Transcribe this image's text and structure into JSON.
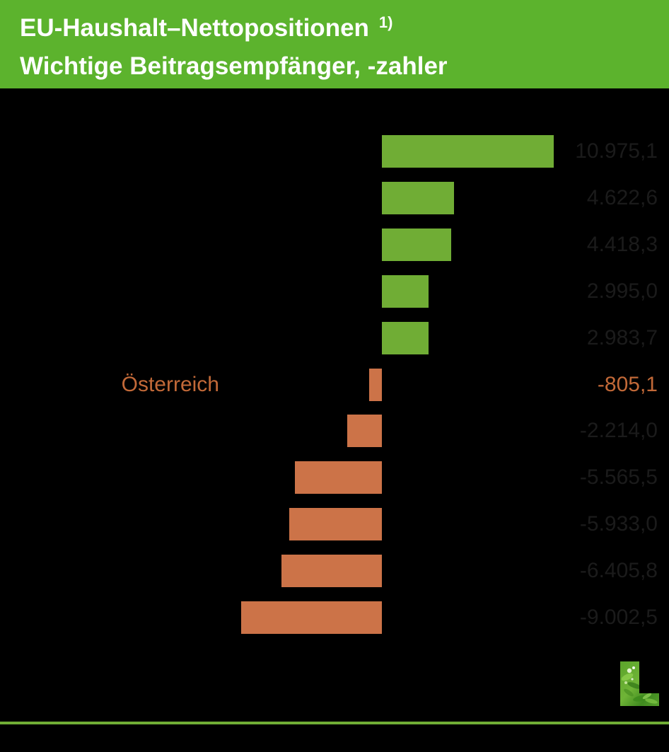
{
  "header": {
    "title_line1": "EU-Haushalt–Nettopositionen",
    "title_superscript": "1)",
    "title_line2": "Wichtige Beitragsempfänger, -zahler",
    "background_color": "#5cb32d",
    "text_color": "#ffffff"
  },
  "chart_data": {
    "type": "bar",
    "orientation": "horizontal",
    "categories": [
      "",
      "",
      "",
      "",
      "",
      "Österreich",
      "",
      "",
      "",
      "",
      ""
    ],
    "values": [
      10975.1,
      4622.6,
      4418.3,
      2995.0,
      2983.7,
      -805.1,
      -2214.0,
      -5565.5,
      -5933.0,
      -6405.8,
      -9002.5
    ],
    "value_labels": [
      "10.975,1",
      "4.622,6",
      "4.418,3",
      "2.995,0",
      "2.983,7",
      "-805,1",
      "-2.214,0",
      "-5.565,5",
      "-5.933,0",
      "-6.405,8",
      "-9.002,5"
    ],
    "highlight_index": 5,
    "positive_color": "#70ad35",
    "negative_color": "#cc7348",
    "value_text_color": "#1b1b1b",
    "highlight_text_color": "#c26938",
    "plot_background": "#000000",
    "xlim": [
      -11000,
      11000
    ],
    "grid": false,
    "legend": false
  },
  "footer": {
    "divider_color": "#70ad35",
    "logo": "leaf-L-logo"
  }
}
